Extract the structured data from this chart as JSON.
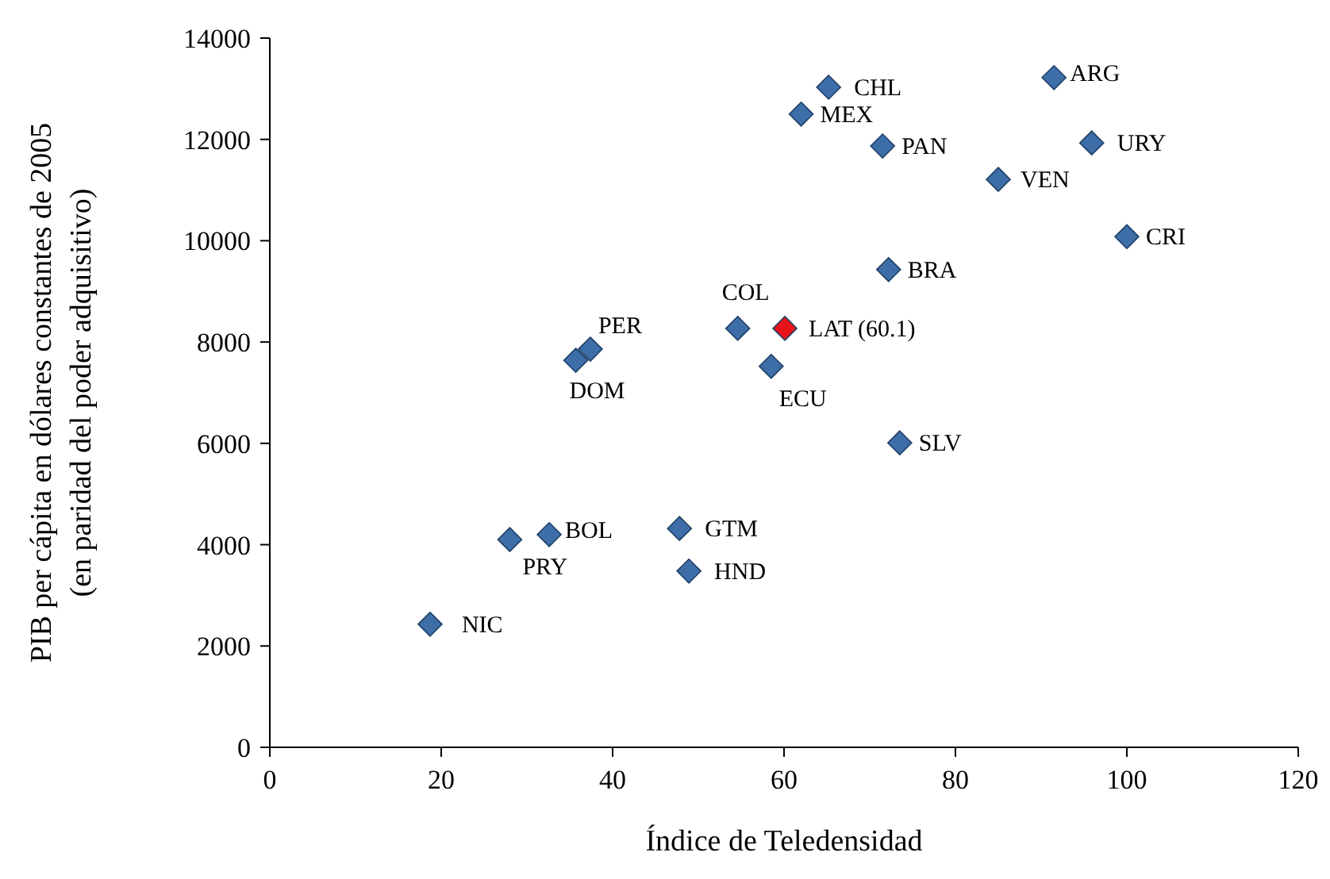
{
  "chart_data": {
    "type": "scatter",
    "xlabel": "Índice de Teledensidad",
    "ylabel": "PIB per cápita en dólares constantes de 2005\n(en paridad del poder adquisitivo)",
    "xlim": [
      0,
      120
    ],
    "xticks": [
      0,
      20,
      40,
      60,
      80,
      100,
      120
    ],
    "ylim": [
      0,
      14000
    ],
    "yticks": [
      0,
      2000,
      4000,
      6000,
      8000,
      10000,
      12000,
      14000
    ],
    "grid": false,
    "legend": false,
    "marker": "diamond",
    "series": [
      {
        "color": "#3e6ea8",
        "x": [
          18.7,
          28.0,
          32.6,
          47.8,
          48.9,
          35.7,
          37.4,
          54.6,
          58.5,
          73.5,
          72.2,
          65.2,
          62.0,
          71.5,
          85.0,
          91.5,
          95.9,
          100.0
        ],
        "values": [
          2430,
          4100,
          4200,
          4320,
          3480,
          7640,
          7860,
          8270,
          7520,
          6010,
          9430,
          13030,
          12500,
          11870,
          11210,
          13220,
          11930,
          10080
        ]
      },
      {
        "color": "#e8141b",
        "x": [
          60.1
        ],
        "values": [
          8270
        ]
      }
    ],
    "annotations": [
      {
        "text": "NIC",
        "x": 18.7,
        "y": 2430
      },
      {
        "text": "PRY",
        "x": 28.0,
        "y": 4100
      },
      {
        "text": "BOL",
        "x": 32.6,
        "y": 4200
      },
      {
        "text": "GTM",
        "x": 47.8,
        "y": 4320
      },
      {
        "text": "HND",
        "x": 48.9,
        "y": 3480
      },
      {
        "text": "DOM",
        "x": 35.7,
        "y": 7640
      },
      {
        "text": "PER",
        "x": 37.4,
        "y": 7860
      },
      {
        "text": "COL",
        "x": 54.6,
        "y": 8270
      },
      {
        "text": "LAT (60.1)",
        "x": 60.1,
        "y": 8270
      },
      {
        "text": "ECU",
        "x": 58.5,
        "y": 7520
      },
      {
        "text": "SLV",
        "x": 73.5,
        "y": 6010
      },
      {
        "text": "BRA",
        "x": 72.2,
        "y": 9430
      },
      {
        "text": "CHL",
        "x": 65.2,
        "y": 13030
      },
      {
        "text": "MEX",
        "x": 62.0,
        "y": 12500
      },
      {
        "text": "PAN",
        "x": 71.5,
        "y": 11870
      },
      {
        "text": "VEN",
        "x": 85.0,
        "y": 11210
      },
      {
        "text": "ARG",
        "x": 91.5,
        "y": 13220
      },
      {
        "text": "URY",
        "x": 95.9,
        "y": 11930
      },
      {
        "text": "CRI",
        "x": 100.0,
        "y": 10080
      }
    ]
  }
}
